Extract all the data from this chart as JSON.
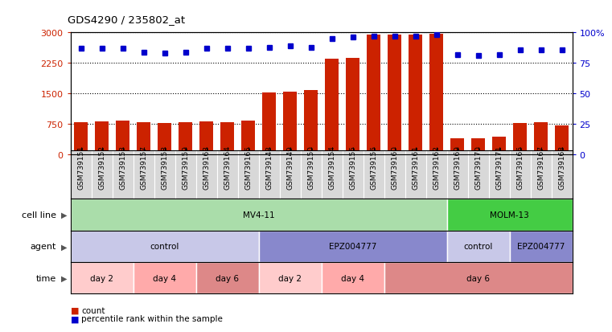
{
  "title": "GDS4290 / 235802_at",
  "samples": [
    "GSM739151",
    "GSM739152",
    "GSM739153",
    "GSM739157",
    "GSM739158",
    "GSM739159",
    "GSM739163",
    "GSM739164",
    "GSM739165",
    "GSM739148",
    "GSM739149",
    "GSM739150",
    "GSM739154",
    "GSM739155",
    "GSM739156",
    "GSM739160",
    "GSM739161",
    "GSM739162",
    "GSM739169",
    "GSM739170",
    "GSM739171",
    "GSM739166",
    "GSM739167",
    "GSM739168"
  ],
  "counts": [
    780,
    800,
    820,
    780,
    760,
    790,
    810,
    790,
    830,
    1510,
    1530,
    1570,
    2360,
    2380,
    2950,
    2940,
    2950,
    2970,
    380,
    380,
    420,
    760,
    780,
    710
  ],
  "percentile_ranks": [
    87,
    87,
    87,
    84,
    83,
    84,
    87,
    87,
    87,
    88,
    89,
    88,
    95,
    96,
    97,
    97,
    97,
    98,
    82,
    81,
    82,
    86,
    86,
    86
  ],
  "ylim_left": [
    0,
    3000
  ],
  "ylim_right": [
    0,
    100
  ],
  "yticks_left": [
    0,
    750,
    1500,
    2250,
    3000
  ],
  "yticks_right": [
    0,
    25,
    50,
    75,
    100
  ],
  "bar_color": "#cc2200",
  "dot_color": "#0000cc",
  "cell_line_row": [
    {
      "label": "MV4-11",
      "start": 0,
      "end": 18,
      "color": "#aaddaa"
    },
    {
      "label": "MOLM-13",
      "start": 18,
      "end": 24,
      "color": "#44cc44"
    }
  ],
  "agent_row": [
    {
      "label": "control",
      "start": 0,
      "end": 9,
      "color": "#c8c8e8"
    },
    {
      "label": "EPZ004777",
      "start": 9,
      "end": 18,
      "color": "#8888cc"
    },
    {
      "label": "control",
      "start": 18,
      "end": 21,
      "color": "#c8c8e8"
    },
    {
      "label": "EPZ004777",
      "start": 21,
      "end": 24,
      "color": "#8888cc"
    }
  ],
  "time_row": [
    {
      "label": "day 2",
      "start": 0,
      "end": 3,
      "color": "#ffcccc"
    },
    {
      "label": "day 4",
      "start": 3,
      "end": 6,
      "color": "#ffaaaa"
    },
    {
      "label": "day 6",
      "start": 6,
      "end": 9,
      "color": "#dd8888"
    },
    {
      "label": "day 2",
      "start": 9,
      "end": 12,
      "color": "#ffcccc"
    },
    {
      "label": "day 4",
      "start": 12,
      "end": 15,
      "color": "#ffaaaa"
    },
    {
      "label": "day 6",
      "start": 15,
      "end": 24,
      "color": "#dd8888"
    }
  ],
  "row_labels": [
    "cell line",
    "agent",
    "time"
  ],
  "xtick_bg_color": "#d8d8d8",
  "legend_items": [
    {
      "label": "count",
      "color": "#cc2200"
    },
    {
      "label": "percentile rank within the sample",
      "color": "#0000cc"
    }
  ]
}
